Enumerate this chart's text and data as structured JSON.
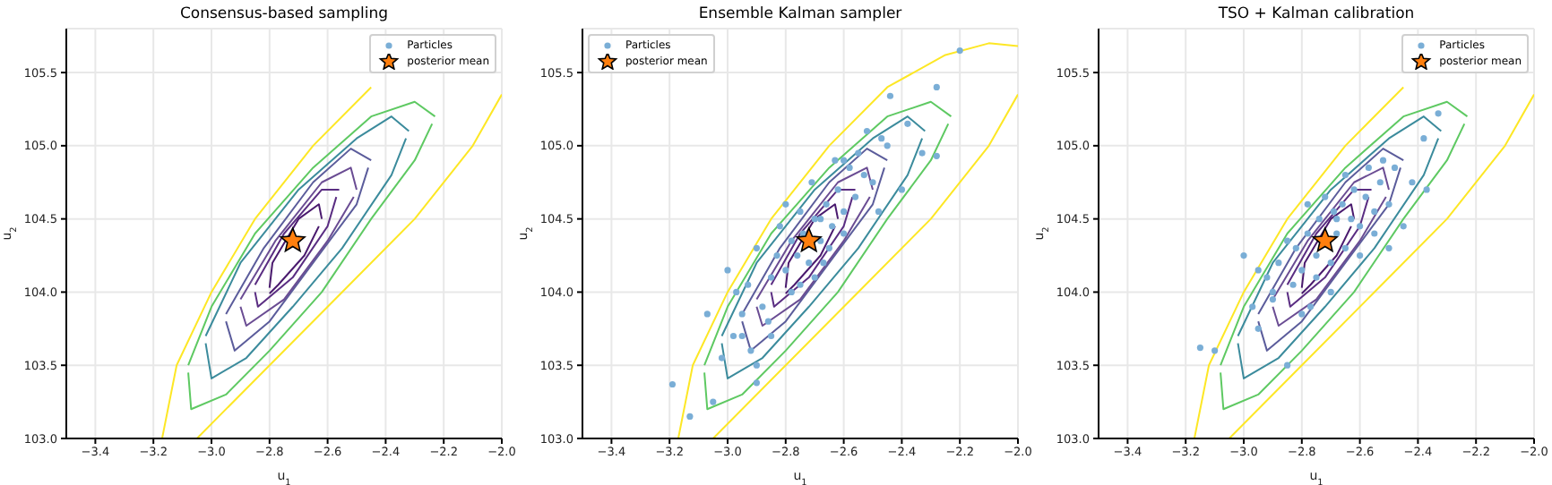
{
  "chart_data": [
    {
      "type": "scatter",
      "title": "Consensus-based sampling",
      "xlabel": "u$_{1}$",
      "ylabel": "u$_{2}$",
      "xlim": [
        -3.5,
        -2.0
      ],
      "ylim": [
        103.0,
        105.8
      ],
      "xticks": [
        {
          "value": -3.4,
          "label": "−3.4"
        },
        {
          "value": -3.2,
          "label": "−3.2"
        },
        {
          "value": -3.0,
          "label": "−3.0"
        },
        {
          "value": -2.8,
          "label": "−2.8"
        },
        {
          "value": -2.6,
          "label": "−2.6"
        },
        {
          "value": -2.4,
          "label": "−2.4"
        },
        {
          "value": -2.2,
          "label": "−2.2"
        },
        {
          "value": -2.0,
          "label": "−2.0"
        }
      ],
      "yticks": [
        {
          "value": 103.0,
          "label": "103.0"
        },
        {
          "value": 103.5,
          "label": "103.5"
        },
        {
          "value": 104.0,
          "label": "104.0"
        },
        {
          "value": 104.5,
          "label": "104.5"
        },
        {
          "value": 105.0,
          "label": "105.0"
        },
        {
          "value": 105.5,
          "label": "105.5"
        }
      ],
      "grid": true,
      "legend": "top right",
      "series": [
        {
          "type": "line",
          "marker": "none",
          "color": "#fde725",
          "x": [
            -3.17,
            -3.12,
            -3.0,
            -2.85,
            -2.65,
            -2.45
          ],
          "values": [
            103.0,
            103.5,
            104.0,
            104.5,
            105.0,
            105.4
          ]
        },
        {
          "type": "line",
          "marker": "none",
          "color": "#fde725",
          "x": [
            -3.05,
            -2.8,
            -2.55,
            -2.3,
            -2.1,
            -2.0
          ],
          "values": [
            103.0,
            103.5,
            104.0,
            104.5,
            105.0,
            105.35
          ]
        },
        {
          "type": "line",
          "marker": "none",
          "color": "#5ec962",
          "x": [
            -3.08,
            -3.0,
            -2.85,
            -2.65,
            -2.45,
            -2.3,
            -2.23
          ],
          "values": [
            103.5,
            103.9,
            104.4,
            104.85,
            105.2,
            105.3,
            105.2
          ]
        },
        {
          "type": "line",
          "marker": "none",
          "color": "#5ec962",
          "x": [
            -3.08,
            -3.07,
            -2.95,
            -2.8,
            -2.62,
            -2.45,
            -2.3,
            -2.24
          ],
          "values": [
            103.45,
            103.2,
            103.3,
            103.6,
            104.0,
            104.5,
            104.9,
            105.15
          ]
        },
        {
          "type": "line",
          "marker": "none",
          "color": "#3b8b9c",
          "x": [
            -3.02,
            -2.9,
            -2.7,
            -2.5,
            -2.38,
            -2.32
          ],
          "values": [
            103.7,
            104.2,
            104.7,
            105.05,
            105.2,
            105.1
          ]
        },
        {
          "type": "line",
          "marker": "none",
          "color": "#3b8b9c",
          "x": [
            -3.02,
            -3.0,
            -2.88,
            -2.72,
            -2.55,
            -2.38,
            -2.33
          ],
          "values": [
            103.65,
            103.41,
            103.55,
            103.9,
            104.3,
            104.8,
            105.05
          ]
        },
        {
          "type": "line",
          "marker": "none",
          "color": "#5b5c9b",
          "x": [
            -2.95,
            -2.82,
            -2.65,
            -2.52,
            -2.45
          ],
          "values": [
            103.85,
            104.3,
            104.75,
            104.98,
            104.9
          ]
        },
        {
          "type": "line",
          "marker": "none",
          "color": "#5b5c9b",
          "x": [
            -2.95,
            -2.92,
            -2.8,
            -2.65,
            -2.5,
            -2.46
          ],
          "values": [
            103.8,
            103.6,
            103.8,
            104.2,
            104.6,
            104.85
          ]
        },
        {
          "type": "line",
          "marker": "none",
          "color": "#6a4c93",
          "x": [
            -2.9,
            -2.78,
            -2.62,
            -2.52,
            -2.5
          ],
          "values": [
            103.95,
            104.35,
            104.75,
            104.85,
            104.7
          ]
        },
        {
          "type": "line",
          "marker": "none",
          "color": "#6a4c93",
          "x": [
            -2.9,
            -2.88,
            -2.75,
            -2.6,
            -2.51
          ],
          "values": [
            103.9,
            103.77,
            103.95,
            104.35,
            104.65
          ]
        },
        {
          "type": "line",
          "marker": "none",
          "color": "#5a2d82",
          "x": [
            -2.85,
            -2.75,
            -2.62,
            -2.56
          ],
          "values": [
            104.05,
            104.4,
            104.7,
            104.7
          ]
        },
        {
          "type": "line",
          "marker": "none",
          "color": "#5a2d82",
          "x": [
            -2.85,
            -2.84,
            -2.72,
            -2.6,
            -2.57
          ],
          "values": [
            104.0,
            103.9,
            104.1,
            104.45,
            104.65
          ]
        },
        {
          "type": "line",
          "marker": "none",
          "color": "#4a1a6e",
          "x": [
            -2.8,
            -2.79,
            -2.7,
            -2.63,
            -2.62
          ],
          "values": [
            104.03,
            104.2,
            104.5,
            104.6,
            104.5
          ]
        },
        {
          "type": "line",
          "marker": "none",
          "color": "#4a1a6e",
          "x": [
            -2.8,
            -2.77,
            -2.68,
            -2.63
          ],
          "values": [
            103.99,
            104.05,
            104.25,
            104.45
          ]
        },
        {
          "name": "Particles",
          "marker": "circle",
          "color": "#7aaed6"
        },
        {
          "name": "posterior mean",
          "marker": "star",
          "color": "#ff7f0e",
          "x": [
            -2.72
          ],
          "values": [
            104.35
          ]
        }
      ]
    },
    {
      "type": "scatter",
      "title": "Ensemble Kalman sampler",
      "xlabel": "u$_{1}$",
      "ylabel": "u$_{2}$",
      "xlim": [
        -3.5,
        -2.0
      ],
      "ylim": [
        103.0,
        105.8
      ],
      "xticks": [
        {
          "value": -3.4,
          "label": "−3.4"
        },
        {
          "value": -3.2,
          "label": "−3.2"
        },
        {
          "value": -3.0,
          "label": "−3.0"
        },
        {
          "value": -2.8,
          "label": "−2.8"
        },
        {
          "value": -2.6,
          "label": "−2.6"
        },
        {
          "value": -2.4,
          "label": "−2.4"
        },
        {
          "value": -2.2,
          "label": "−2.2"
        },
        {
          "value": -2.0,
          "label": "−2.0"
        }
      ],
      "yticks": [
        {
          "value": 103.0,
          "label": "103.0"
        },
        {
          "value": 103.5,
          "label": "103.5"
        },
        {
          "value": 104.0,
          "label": "104.0"
        },
        {
          "value": 104.5,
          "label": "104.5"
        },
        {
          "value": 105.0,
          "label": "105.0"
        },
        {
          "value": 105.5,
          "label": "105.5"
        }
      ],
      "grid": true,
      "legend": "top left",
      "series": [
        {
          "type": "line",
          "marker": "none",
          "color": "#fde725",
          "x": [
            -3.17,
            -3.12,
            -3.0,
            -2.85,
            -2.65,
            -2.45,
            -2.25,
            -2.1,
            -2.0
          ],
          "values": [
            103.0,
            103.5,
            104.0,
            104.5,
            105.0,
            105.4,
            105.62,
            105.7,
            105.68
          ]
        },
        {
          "type": "line",
          "marker": "none",
          "color": "#fde725",
          "x": [
            -3.05,
            -2.8,
            -2.55,
            -2.3,
            -2.1,
            -2.0
          ],
          "values": [
            103.0,
            103.5,
            104.0,
            104.5,
            105.0,
            105.35
          ]
        },
        {
          "type": "line",
          "marker": "none",
          "color": "#5ec962",
          "x": [
            -3.08,
            -3.0,
            -2.85,
            -2.65,
            -2.45,
            -2.3,
            -2.23
          ],
          "values": [
            103.5,
            103.9,
            104.4,
            104.85,
            105.2,
            105.3,
            105.2
          ]
        },
        {
          "type": "line",
          "marker": "none",
          "color": "#5ec962",
          "x": [
            -3.08,
            -3.07,
            -2.95,
            -2.8,
            -2.62,
            -2.45,
            -2.3,
            -2.24
          ],
          "values": [
            103.45,
            103.2,
            103.3,
            103.6,
            104.0,
            104.5,
            104.9,
            105.15
          ]
        },
        {
          "type": "line",
          "marker": "none",
          "color": "#3b8b9c",
          "x": [
            -3.02,
            -2.9,
            -2.7,
            -2.5,
            -2.38,
            -2.32
          ],
          "values": [
            103.7,
            104.2,
            104.7,
            105.05,
            105.2,
            105.1
          ]
        },
        {
          "type": "line",
          "marker": "none",
          "color": "#3b8b9c",
          "x": [
            -3.02,
            -3.0,
            -2.88,
            -2.72,
            -2.55,
            -2.38,
            -2.33
          ],
          "values": [
            103.65,
            103.41,
            103.55,
            103.9,
            104.3,
            104.8,
            105.05
          ]
        },
        {
          "type": "line",
          "marker": "none",
          "color": "#5b5c9b",
          "x": [
            -2.95,
            -2.82,
            -2.65,
            -2.52,
            -2.45
          ],
          "values": [
            103.85,
            104.3,
            104.75,
            104.98,
            104.9
          ]
        },
        {
          "type": "line",
          "marker": "none",
          "color": "#5b5c9b",
          "x": [
            -2.95,
            -2.92,
            -2.8,
            -2.65,
            -2.5,
            -2.46
          ],
          "values": [
            103.8,
            103.6,
            103.8,
            104.2,
            104.6,
            104.85
          ]
        },
        {
          "type": "line",
          "marker": "none",
          "color": "#6a4c93",
          "x": [
            -2.9,
            -2.78,
            -2.62,
            -2.52,
            -2.5
          ],
          "values": [
            103.95,
            104.35,
            104.75,
            104.85,
            104.7
          ]
        },
        {
          "type": "line",
          "marker": "none",
          "color": "#6a4c93",
          "x": [
            -2.9,
            -2.88,
            -2.75,
            -2.6,
            -2.51
          ],
          "values": [
            103.9,
            103.77,
            103.95,
            104.35,
            104.65
          ]
        },
        {
          "type": "line",
          "marker": "none",
          "color": "#5a2d82",
          "x": [
            -2.85,
            -2.75,
            -2.62,
            -2.56
          ],
          "values": [
            104.05,
            104.4,
            104.7,
            104.7
          ]
        },
        {
          "type": "line",
          "marker": "none",
          "color": "#5a2d82",
          "x": [
            -2.85,
            -2.84,
            -2.72,
            -2.6,
            -2.57
          ],
          "values": [
            104.0,
            103.9,
            104.1,
            104.45,
            104.65
          ]
        },
        {
          "type": "line",
          "marker": "none",
          "color": "#4a1a6e",
          "x": [
            -2.8,
            -2.79,
            -2.7,
            -2.63,
            -2.62
          ],
          "values": [
            104.03,
            104.2,
            104.5,
            104.6,
            104.5
          ]
        },
        {
          "type": "line",
          "marker": "none",
          "color": "#4a1a6e",
          "x": [
            -2.8,
            -2.77,
            -2.68,
            -2.63
          ],
          "values": [
            103.99,
            104.05,
            104.25,
            104.45
          ]
        },
        {
          "name": "Particles",
          "marker": "circle",
          "color": "#7aaed6",
          "x": [
            -3.19,
            -3.13,
            -3.05,
            -3.02,
            -2.98,
            -2.95,
            -2.92,
            -2.9,
            -2.97,
            -3.07,
            -3.0,
            -2.93,
            -2.88,
            -2.85,
            -2.9,
            -2.83,
            -2.8,
            -2.86,
            -2.78,
            -2.82,
            -2.76,
            -2.74,
            -2.8,
            -2.72,
            -2.7,
            -2.75,
            -2.68,
            -2.66,
            -2.71,
            -2.64,
            -2.62,
            -2.67,
            -2.6,
            -2.58,
            -2.63,
            -2.56,
            -2.55,
            -2.6,
            -2.53,
            -2.5,
            -2.48,
            -2.52,
            -2.45,
            -2.47,
            -2.44,
            -2.38,
            -2.33,
            -2.28,
            -2.2,
            -2.28,
            -2.4,
            -2.85,
            -2.9,
            -2.78,
            -2.7,
            -2.65,
            -2.95,
            -2.6,
            -2.75,
            -2.68
          ],
          "values": [
            103.37,
            103.15,
            103.25,
            103.55,
            103.7,
            103.85,
            103.6,
            103.38,
            104.0,
            103.85,
            104.15,
            104.05,
            103.9,
            104.1,
            104.3,
            104.25,
            104.15,
            103.8,
            104.35,
            104.45,
            104.25,
            104.4,
            104.6,
            104.2,
            104.5,
            104.05,
            104.35,
            104.6,
            104.75,
            104.45,
            104.7,
            104.2,
            104.55,
            104.85,
            104.9,
            104.65,
            104.95,
            104.4,
            104.8,
            104.75,
            104.55,
            105.1,
            105.0,
            105.05,
            105.34,
            105.15,
            104.95,
            105.4,
            105.65,
            104.93,
            104.7,
            103.7,
            103.5,
            104.0,
            104.1,
            104.3,
            103.7,
            104.9,
            104.55,
            104.5
          ]
        },
        {
          "name": "posterior mean",
          "marker": "star",
          "color": "#ff7f0e",
          "x": [
            -2.72
          ],
          "values": [
            104.35
          ]
        }
      ]
    },
    {
      "type": "scatter",
      "title": "TSO + Kalman calibration",
      "xlabel": "u$_{1}$",
      "ylabel": "u$_{2}$",
      "xlim": [
        -3.5,
        -2.0
      ],
      "ylim": [
        103.0,
        105.8
      ],
      "xticks": [
        {
          "value": -3.4,
          "label": "−3.4"
        },
        {
          "value": -3.2,
          "label": "−3.2"
        },
        {
          "value": -3.0,
          "label": "−3.0"
        },
        {
          "value": -2.8,
          "label": "−2.8"
        },
        {
          "value": -2.6,
          "label": "−2.6"
        },
        {
          "value": -2.4,
          "label": "−2.4"
        },
        {
          "value": -2.2,
          "label": "−2.2"
        },
        {
          "value": -2.0,
          "label": "−2.0"
        }
      ],
      "yticks": [
        {
          "value": 103.0,
          "label": "103.0"
        },
        {
          "value": 103.5,
          "label": "103.5"
        },
        {
          "value": 104.0,
          "label": "104.0"
        },
        {
          "value": 104.5,
          "label": "104.5"
        },
        {
          "value": 105.0,
          "label": "105.0"
        },
        {
          "value": 105.5,
          "label": "105.5"
        }
      ],
      "grid": true,
      "legend": "top right",
      "series": [
        {
          "type": "line",
          "marker": "none",
          "color": "#fde725",
          "x": [
            -3.17,
            -3.12,
            -3.0,
            -2.85,
            -2.65,
            -2.45
          ],
          "values": [
            103.0,
            103.5,
            104.0,
            104.5,
            105.0,
            105.4
          ]
        },
        {
          "type": "line",
          "marker": "none",
          "color": "#fde725",
          "x": [
            -3.05,
            -2.8,
            -2.55,
            -2.3,
            -2.1,
            -2.0
          ],
          "values": [
            103.0,
            103.5,
            104.0,
            104.5,
            105.0,
            105.35
          ]
        },
        {
          "type": "line",
          "marker": "none",
          "color": "#5ec962",
          "x": [
            -3.08,
            -3.0,
            -2.85,
            -2.65,
            -2.45,
            -2.3,
            -2.23
          ],
          "values": [
            103.5,
            103.9,
            104.4,
            104.85,
            105.2,
            105.3,
            105.2
          ]
        },
        {
          "type": "line",
          "marker": "none",
          "color": "#5ec962",
          "x": [
            -3.08,
            -3.07,
            -2.95,
            -2.8,
            -2.62,
            -2.45,
            -2.3,
            -2.24
          ],
          "values": [
            103.45,
            103.2,
            103.3,
            103.6,
            104.0,
            104.5,
            104.9,
            105.15
          ]
        },
        {
          "type": "line",
          "marker": "none",
          "color": "#3b8b9c",
          "x": [
            -3.02,
            -2.9,
            -2.7,
            -2.5,
            -2.38,
            -2.32
          ],
          "values": [
            103.7,
            104.2,
            104.7,
            105.05,
            105.2,
            105.1
          ]
        },
        {
          "type": "line",
          "marker": "none",
          "color": "#3b8b9c",
          "x": [
            -3.02,
            -3.0,
            -2.88,
            -2.72,
            -2.55,
            -2.38,
            -2.33
          ],
          "values": [
            103.65,
            103.41,
            103.55,
            103.9,
            104.3,
            104.8,
            105.05
          ]
        },
        {
          "type": "line",
          "marker": "none",
          "color": "#5b5c9b",
          "x": [
            -2.95,
            -2.82,
            -2.65,
            -2.52,
            -2.45
          ],
          "values": [
            103.85,
            104.3,
            104.75,
            104.98,
            104.9
          ]
        },
        {
          "type": "line",
          "marker": "none",
          "color": "#5b5c9b",
          "x": [
            -2.95,
            -2.92,
            -2.8,
            -2.65,
            -2.5,
            -2.46
          ],
          "values": [
            103.8,
            103.6,
            103.8,
            104.2,
            104.6,
            104.85
          ]
        },
        {
          "type": "line",
          "marker": "none",
          "color": "#6a4c93",
          "x": [
            -2.9,
            -2.78,
            -2.62,
            -2.52,
            -2.5
          ],
          "values": [
            103.95,
            104.35,
            104.75,
            104.85,
            104.7
          ]
        },
        {
          "type": "line",
          "marker": "none",
          "color": "#6a4c93",
          "x": [
            -2.9,
            -2.88,
            -2.75,
            -2.6,
            -2.51
          ],
          "values": [
            103.9,
            103.77,
            103.95,
            104.35,
            104.65
          ]
        },
        {
          "type": "line",
          "marker": "none",
          "color": "#5a2d82",
          "x": [
            -2.85,
            -2.75,
            -2.62,
            -2.56
          ],
          "values": [
            104.05,
            104.4,
            104.7,
            104.7
          ]
        },
        {
          "type": "line",
          "marker": "none",
          "color": "#5a2d82",
          "x": [
            -2.85,
            -2.84,
            -2.72,
            -2.6,
            -2.57
          ],
          "values": [
            104.0,
            103.9,
            104.1,
            104.45,
            104.65
          ]
        },
        {
          "type": "line",
          "marker": "none",
          "color": "#4a1a6e",
          "x": [
            -2.8,
            -2.79,
            -2.7,
            -2.63,
            -2.62
          ],
          "values": [
            104.03,
            104.2,
            104.5,
            104.6,
            104.5
          ]
        },
        {
          "type": "line",
          "marker": "none",
          "color": "#4a1a6e",
          "x": [
            -2.8,
            -2.77,
            -2.68,
            -2.63
          ],
          "values": [
            103.99,
            104.05,
            104.25,
            104.45
          ]
        },
        {
          "name": "Particles",
          "marker": "circle",
          "color": "#7aaed6",
          "x": [
            -3.15,
            -3.1,
            -3.0,
            -2.97,
            -2.95,
            -2.92,
            -2.9,
            -2.88,
            -2.85,
            -2.83,
            -2.82,
            -2.8,
            -2.78,
            -2.77,
            -2.75,
            -2.74,
            -2.7,
            -2.69,
            -2.68,
            -2.66,
            -2.65,
            -2.63,
            -2.62,
            -2.6,
            -2.58,
            -2.57,
            -2.55,
            -2.53,
            -2.52,
            -2.5,
            -2.48,
            -2.45,
            -2.42,
            -2.38,
            -2.37,
            -2.33,
            -2.85,
            -2.8,
            -2.75,
            -2.7,
            -2.9,
            -2.6,
            -2.65,
            -2.78,
            -2.72,
            -2.55,
            -2.5,
            -2.95,
            -2.68
          ],
          "values": [
            103.62,
            103.6,
            104.25,
            103.9,
            103.75,
            104.1,
            103.95,
            104.2,
            103.5,
            104.05,
            104.3,
            104.15,
            104.4,
            103.9,
            104.25,
            104.5,
            104.2,
            104.55,
            104.4,
            104.6,
            104.3,
            104.5,
            104.7,
            104.45,
            104.65,
            104.85,
            104.55,
            104.75,
            104.9,
            104.6,
            104.85,
            104.45,
            104.75,
            105.05,
            104.7,
            105.22,
            104.35,
            103.85,
            104.1,
            104.0,
            104.0,
            104.25,
            104.8,
            104.6,
            104.65,
            104.4,
            104.3,
            104.15,
            104.5
          ]
        },
        {
          "name": "posterior mean",
          "marker": "star",
          "color": "#ff7f0e",
          "x": [
            -2.72
          ],
          "values": [
            104.35
          ]
        }
      ]
    }
  ]
}
